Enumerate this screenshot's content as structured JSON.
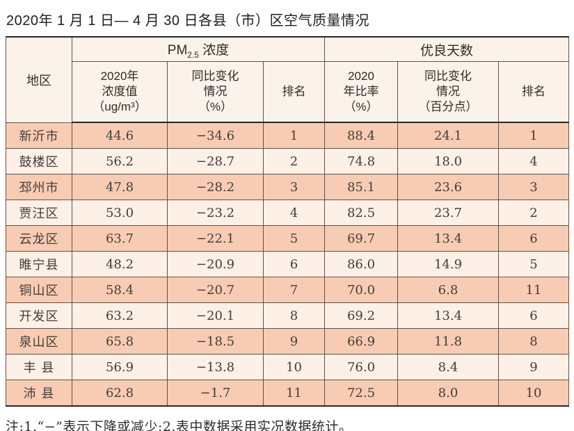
{
  "page": {
    "title": "2020年 1 月 1 日— 4 月 30 日各县（市）区空气质量情况",
    "note": "注:1.“−”表示下降或减少;2.表中数据采用实况数据统计。"
  },
  "colors": {
    "row_salmon": "#f8ccb3",
    "row_cream": "#fdf0e7",
    "header_bg": "#fbf2ea",
    "heavy_rule": "#2a2522",
    "grid_line": "#5f5148"
  },
  "table": {
    "area_header": "地区",
    "group_pm25": {
      "prefix": "PM",
      "sub": "2.5",
      "suffix": " 浓度"
    },
    "group_days": {
      "title": "优良天数"
    },
    "sub_headers": {
      "pm_value": "2020年\n浓度值\n（ug/m³）",
      "pm_change": "同比变化\n情况\n（%）",
      "pm_rank": "排名",
      "days_ratio": "2020\n年比率\n（%）",
      "days_change": "同比变化\n情况\n（百分点）",
      "days_rank": "排名"
    },
    "rows": [
      [
        "新沂市",
        "44.6",
        "−34.6",
        "1",
        "88.4",
        "24.1",
        "1"
      ],
      [
        "鼓楼区",
        "56.2",
        "−28.7",
        "2",
        "74.8",
        "18.0",
        "4"
      ],
      [
        "邳州市",
        "47.8",
        "−28.2",
        "3",
        "85.1",
        "23.6",
        "3"
      ],
      [
        "贾汪区",
        "53.0",
        "−23.2",
        "4",
        "82.5",
        "23.7",
        "2"
      ],
      [
        "云龙区",
        "63.7",
        "−22.1",
        "5",
        "69.7",
        "13.4",
        "6"
      ],
      [
        "睢宁县",
        "48.2",
        "−20.9",
        "6",
        "86.0",
        "14.9",
        "5"
      ],
      [
        "铜山区",
        "58.4",
        "−20.7",
        "7",
        "70.0",
        "6.8",
        "11"
      ],
      [
        "开发区",
        "63.2",
        "−20.1",
        "8",
        "69.2",
        "13.4",
        "6"
      ],
      [
        "泉山区",
        "65.8",
        "−18.5",
        "9",
        "66.9",
        "11.8",
        "8"
      ],
      [
        "丰 县",
        "56.9",
        "−13.8",
        "10",
        "76.0",
        "8.4",
        "9"
      ],
      [
        "沛 县",
        "62.8",
        "−1.7",
        "11",
        "72.5",
        "8.0",
        "10"
      ]
    ],
    "cell_names": [
      "region-cell",
      "pm25-value-cell",
      "pm25-change-cell",
      "pm25-rank-cell",
      "good-days-ratio-cell",
      "good-days-change-cell",
      "good-days-rank-cell"
    ]
  },
  "chart_data": {
    "type": "table",
    "title": "2020年1月1日—4月30日各县（市）区空气质量情况",
    "columns": [
      "地区",
      "PM2.5浓度 2020年浓度值(ug/m3)",
      "PM2.5浓度 同比变化情况(%)",
      "PM2.5浓度 排名",
      "优良天数 2020年比率(%)",
      "优良天数 同比变化情况(百分点)",
      "优良天数 排名"
    ],
    "rows": [
      [
        "新沂市",
        44.6,
        -34.6,
        1,
        88.4,
        24.1,
        1
      ],
      [
        "鼓楼区",
        56.2,
        -28.7,
        2,
        74.8,
        18.0,
        4
      ],
      [
        "邳州市",
        47.8,
        -28.2,
        3,
        85.1,
        23.6,
        3
      ],
      [
        "贾汪区",
        53.0,
        -23.2,
        4,
        82.5,
        23.7,
        2
      ],
      [
        "云龙区",
        63.7,
        -22.1,
        5,
        69.7,
        13.4,
        6
      ],
      [
        "睢宁县",
        48.2,
        -20.9,
        6,
        86.0,
        14.9,
        5
      ],
      [
        "铜山区",
        58.4,
        -20.7,
        7,
        70.0,
        6.8,
        11
      ],
      [
        "开发区",
        63.2,
        -20.1,
        8,
        69.2,
        13.4,
        6
      ],
      [
        "泉山区",
        65.8,
        -18.5,
        9,
        66.9,
        11.8,
        8
      ],
      [
        "丰县",
        56.9,
        -13.8,
        10,
        76.0,
        8.4,
        9
      ],
      [
        "沛县",
        62.8,
        -1.7,
        11,
        72.5,
        8.0,
        10
      ]
    ]
  }
}
